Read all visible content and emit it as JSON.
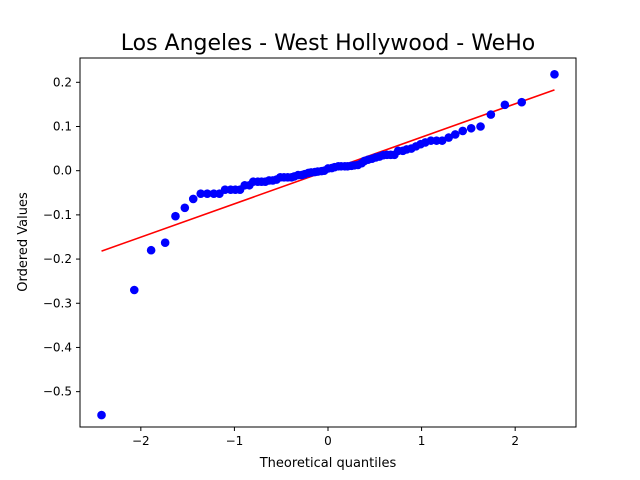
{
  "chart_data": {
    "type": "scatter",
    "title": "Los Angeles - West Hollywood - WeHo",
    "xlabel": "Theoretical quantiles",
    "ylabel": "Ordered Values",
    "xlim": [
      -2.65,
      2.65
    ],
    "ylim": [
      -0.58,
      0.255
    ],
    "xticks": [
      -2,
      -1,
      0,
      1,
      2
    ],
    "xtick_labels": [
      "−2",
      "−1",
      "0",
      "1",
      "2"
    ],
    "yticks": [
      -0.5,
      -0.4,
      -0.3,
      -0.2,
      -0.1,
      0.0,
      0.1,
      0.2
    ],
    "ytick_labels": [
      "−0.5",
      "−0.4",
      "−0.3",
      "−0.2",
      "−0.1",
      "0.0",
      "0.1",
      "0.2"
    ],
    "grid": false,
    "series": [
      {
        "marker_color": "#0000ff",
        "points": [
          [
            -2.42,
            -0.553
          ],
          [
            -2.07,
            -0.27
          ],
          [
            -1.89,
            -0.18
          ],
          [
            -1.74,
            -0.163
          ],
          [
            -1.63,
            -0.103
          ],
          [
            -1.53,
            -0.084
          ],
          [
            -1.44,
            -0.064
          ],
          [
            -1.36,
            -0.052
          ],
          [
            -1.29,
            -0.052
          ],
          [
            -1.22,
            -0.052
          ],
          [
            -1.16,
            -0.052
          ],
          [
            -1.1,
            -0.043
          ],
          [
            -1.04,
            -0.043
          ],
          [
            -0.99,
            -0.043
          ],
          [
            -0.94,
            -0.043
          ],
          [
            -0.89,
            -0.033
          ],
          [
            -0.84,
            -0.033
          ],
          [
            -0.8,
            -0.025
          ],
          [
            -0.75,
            -0.025
          ],
          [
            -0.71,
            -0.025
          ],
          [
            -0.67,
            -0.025
          ],
          [
            -0.63,
            -0.022
          ],
          [
            -0.59,
            -0.022
          ],
          [
            -0.55,
            -0.02
          ],
          [
            -0.51,
            -0.015
          ],
          [
            -0.47,
            -0.015
          ],
          [
            -0.43,
            -0.015
          ],
          [
            -0.39,
            -0.015
          ],
          [
            -0.36,
            -0.013
          ],
          [
            -0.32,
            -0.01
          ],
          [
            -0.28,
            -0.01
          ],
          [
            -0.25,
            -0.008
          ],
          [
            -0.21,
            -0.005
          ],
          [
            -0.18,
            -0.004
          ],
          [
            -0.14,
            -0.003
          ],
          [
            -0.11,
            -0.002
          ],
          [
            -0.07,
            -0.001
          ],
          [
            -0.04,
            0.0
          ],
          [
            0.0,
            0.005
          ],
          [
            0.04,
            0.006
          ],
          [
            0.07,
            0.008
          ],
          [
            0.11,
            0.01
          ],
          [
            0.14,
            0.01
          ],
          [
            0.18,
            0.01
          ],
          [
            0.21,
            0.01
          ],
          [
            0.25,
            0.011
          ],
          [
            0.28,
            0.012
          ],
          [
            0.32,
            0.013
          ],
          [
            0.36,
            0.017
          ],
          [
            0.39,
            0.022
          ],
          [
            0.43,
            0.025
          ],
          [
            0.47,
            0.027
          ],
          [
            0.51,
            0.03
          ],
          [
            0.55,
            0.032
          ],
          [
            0.59,
            0.035
          ],
          [
            0.63,
            0.036
          ],
          [
            0.67,
            0.036
          ],
          [
            0.71,
            0.036
          ],
          [
            0.75,
            0.045
          ],
          [
            0.8,
            0.045
          ],
          [
            0.84,
            0.048
          ],
          [
            0.89,
            0.05
          ],
          [
            0.94,
            0.055
          ],
          [
            0.99,
            0.06
          ],
          [
            1.04,
            0.064
          ],
          [
            1.1,
            0.068
          ],
          [
            1.16,
            0.068
          ],
          [
            1.22,
            0.068
          ],
          [
            1.29,
            0.075
          ],
          [
            1.36,
            0.082
          ],
          [
            1.44,
            0.09
          ],
          [
            1.53,
            0.096
          ],
          [
            1.63,
            0.1
          ],
          [
            1.74,
            0.127
          ],
          [
            1.89,
            0.149
          ],
          [
            2.07,
            0.155
          ],
          [
            2.42,
            0.218
          ]
        ]
      },
      {
        "line_color": "#ff0000",
        "fit_line": [
          [
            -2.42,
            -0.182
          ],
          [
            2.42,
            0.183
          ]
        ]
      }
    ]
  }
}
